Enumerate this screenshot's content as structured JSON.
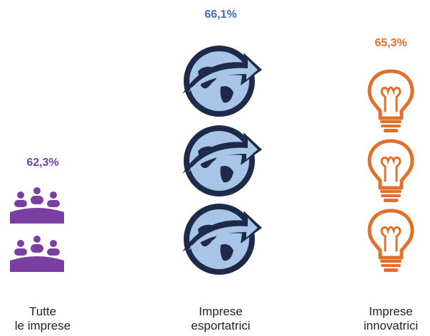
{
  "chart_data": {
    "type": "pictogram",
    "categories": [
      {
        "label_line1": "Tutte",
        "label_line2": "le imprese",
        "value_text": "62,3%",
        "value": 62.3,
        "icon": "people-group-icon",
        "icon_count": 2,
        "color": "#7a3fa0"
      },
      {
        "label_line1": "Imprese",
        "label_line2": "esportatrici",
        "value_text": "66,1%",
        "value": 66.1,
        "icon": "globe-arrow-icon",
        "icon_count": 3,
        "color": "#3e6fb0"
      },
      {
        "label_line1": "Imprese",
        "label_line2": "innovatrici",
        "value_text": "65,3%",
        "value": 65.3,
        "icon": "lightbulb-icon",
        "icon_count": 3,
        "color": "#e0702a"
      }
    ]
  }
}
